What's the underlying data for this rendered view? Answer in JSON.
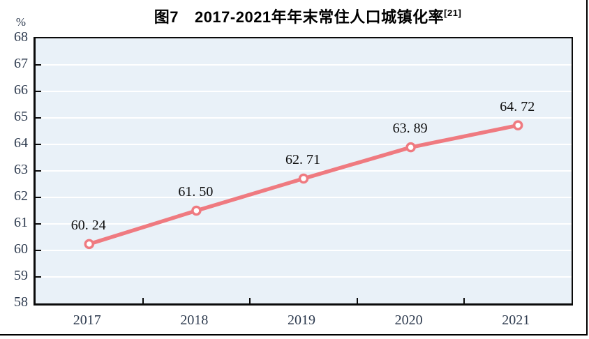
{
  "figure": {
    "title_prefix": "图7",
    "title_main": "2017-2021年年末常住人口城镇化率",
    "title_superscript": "[21]",
    "unit_label": "%"
  },
  "chart_data": {
    "type": "line",
    "title": "图7 2017-2021年年末常住人口城镇化率[21]",
    "xlabel": "",
    "ylabel": "%",
    "categories": [
      "2017",
      "2018",
      "2019",
      "2020",
      "2021"
    ],
    "series": [
      {
        "name": "年末常住人口城镇化率",
        "values": [
          60.24,
          61.5,
          62.71,
          63.89,
          64.72
        ],
        "point_labels": [
          "60. 24",
          "61. 50",
          "62. 71",
          "63. 89",
          "64. 72"
        ]
      }
    ],
    "ylim": [
      58,
      68
    ],
    "y_ticks": [
      58,
      59,
      60,
      61,
      62,
      63,
      64,
      65,
      66,
      67,
      68
    ],
    "grid": "horizontal",
    "legend_position": "none",
    "colors": {
      "line": "#ef7a80",
      "marker_fill": "#ffffff",
      "marker_stroke": "#ef7a80",
      "plot_background": "#e9f1f8",
      "gridline": "#ffffff",
      "axis_border": "#0a0a0a",
      "tick_label": "#2d3a4e",
      "data_label": "#0d0d0d",
      "title": "#000000"
    }
  }
}
